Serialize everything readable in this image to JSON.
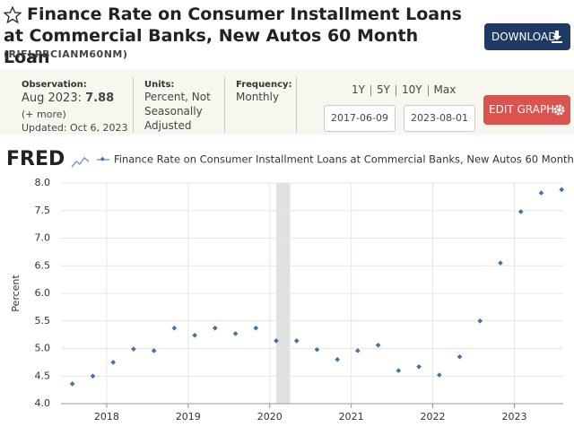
{
  "header": {
    "title": "Finance Rate on Consumer Installment Loans at Commercial Banks, New Autos 60 Month Loan",
    "series_id": "(RIFLPBCIANM60NM)",
    "download": "DOWNLOAD"
  },
  "meta": {
    "observation_label": "Observation:",
    "observation_date": "Aug 2023:",
    "observation_value": "7.88",
    "more": "(+ more)",
    "updated": "Updated: Oct 6, 2023",
    "units_label": "Units:",
    "units": "Percent, Not Seasonally Adjusted",
    "frequency_label": "Frequency:",
    "frequency": "Monthly",
    "ranges": [
      "1Y",
      "5Y",
      "10Y",
      "Max"
    ],
    "start_date": "2017-06-09",
    "end_date": "2023-08-01",
    "edit": "EDIT GRAPH"
  },
  "chart_data": {
    "type": "scatter",
    "logo": "FRED",
    "y_label": "Percent",
    "x": [
      2017.58,
      2017.83,
      2018.08,
      2018.33,
      2018.58,
      2018.83,
      2019.08,
      2019.33,
      2019.58,
      2019.83,
      2020.08,
      2020.33,
      2020.58,
      2020.83,
      2021.08,
      2021.33,
      2021.58,
      2021.83,
      2022.08,
      2022.33,
      2022.58,
      2022.83,
      2023.08,
      2023.33,
      2023.58
    ],
    "series": [
      {
        "name": "Finance Rate on Consumer Installment Loans at Commercial Banks, New Autos 60 Month Loan",
        "color": "#4572a7",
        "values": [
          4.36,
          4.5,
          4.75,
          4.99,
          4.96,
          5.37,
          5.24,
          5.37,
          5.27,
          5.37,
          5.14,
          5.14,
          4.98,
          4.8,
          4.96,
          5.06,
          4.6,
          4.67,
          4.52,
          4.85,
          5.5,
          6.55,
          7.48,
          7.82,
          7.88
        ]
      }
    ],
    "recessions": [
      [
        2020.08,
        2020.25
      ]
    ],
    "xlim": [
      2017.44,
      2023.6
    ],
    "xticks": [
      2018,
      2019,
      2020,
      2021,
      2022,
      2023
    ],
    "ylim": [
      4,
      8
    ],
    "yticks": [
      {
        "value": 4,
        "label": "4.0"
      },
      4.5,
      {
        "value": 5,
        "label": "5.0"
      },
      5.5,
      {
        "value": 6,
        "label": "6.0"
      },
      6.5,
      {
        "value": 7,
        "label": "7.0"
      },
      7.5,
      {
        "value": 8,
        "label": "8.0"
      }
    ],
    "grid": true
  }
}
